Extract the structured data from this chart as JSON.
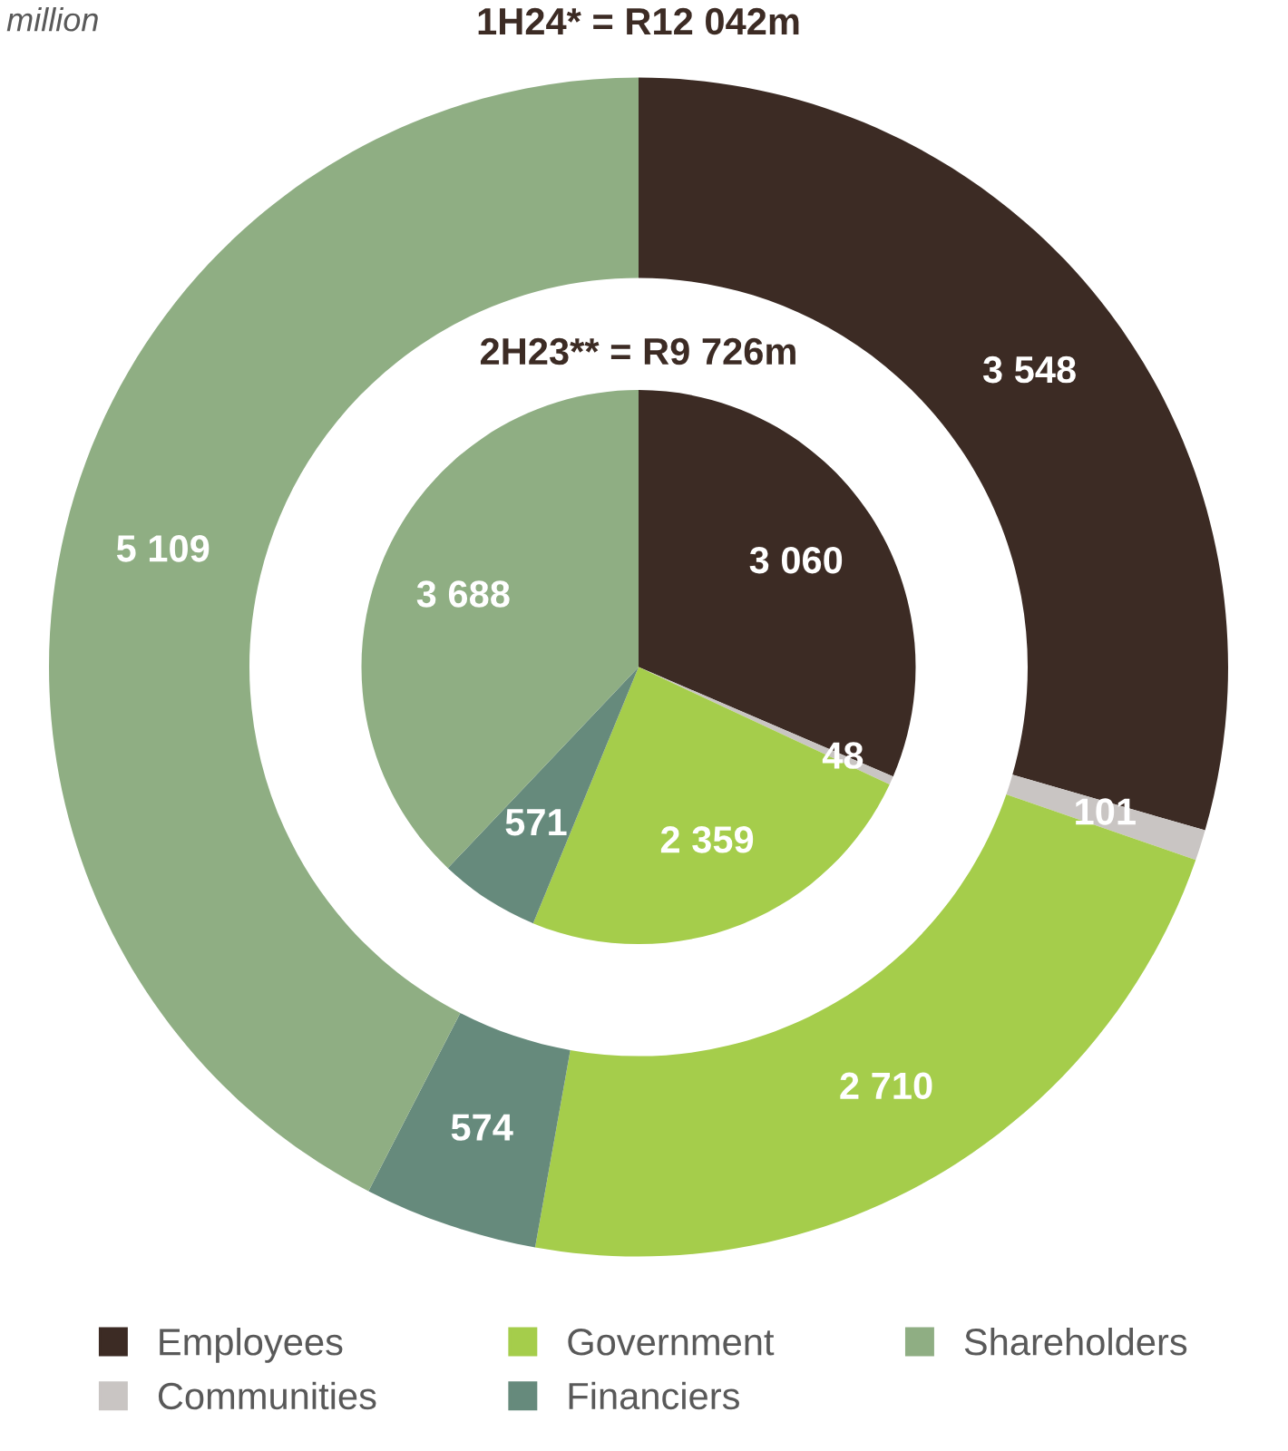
{
  "chart_data": {
    "type": "donut",
    "annotations": [
      "million"
    ],
    "categories": [
      "Employees",
      "Communities",
      "Government",
      "Financiers",
      "Shareholders"
    ],
    "colors": [
      "#3c2b24",
      "#c9c5c3",
      "#a5cd4b",
      "#668a7c",
      "#8fae83"
    ],
    "series": [
      {
        "name": "1H24* = R12 042m",
        "values": [
          3548,
          101,
          2710,
          574,
          5109
        ]
      },
      {
        "name": "2H23** = R9 726m",
        "type": "pie",
        "values": [
          3060,
          48,
          2359,
          571,
          3688
        ]
      }
    ],
    "data_labels": true,
    "legend": "bottom"
  }
}
